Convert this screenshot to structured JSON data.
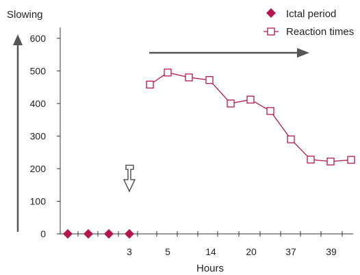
{
  "chart_data": {
    "type": "line",
    "ylabel": "Slowing",
    "xlabel": "Hours",
    "ylim": [
      0,
      630
    ],
    "yticks": [
      0,
      100,
      200,
      300,
      400,
      500,
      600
    ],
    "x_tick_labels": [
      "3",
      "5",
      "14",
      "20",
      "37",
      "39"
    ],
    "grid": false,
    "legend_position": "top-right",
    "series": [
      {
        "name": "Ictal period",
        "marker": "filled-diamond",
        "color": "#b5174d",
        "line": false,
        "values": [
          0,
          0,
          0,
          0
        ]
      },
      {
        "name": "Reaction times",
        "marker": "open-square",
        "color": "#b5174d",
        "line": true,
        "values": [
          458,
          495,
          480,
          472,
          400,
          412,
          377,
          290,
          228,
          222,
          227
        ]
      }
    ],
    "annotations": [
      "up-arrow",
      "right-arrow",
      "hollow-down-arrow"
    ]
  }
}
